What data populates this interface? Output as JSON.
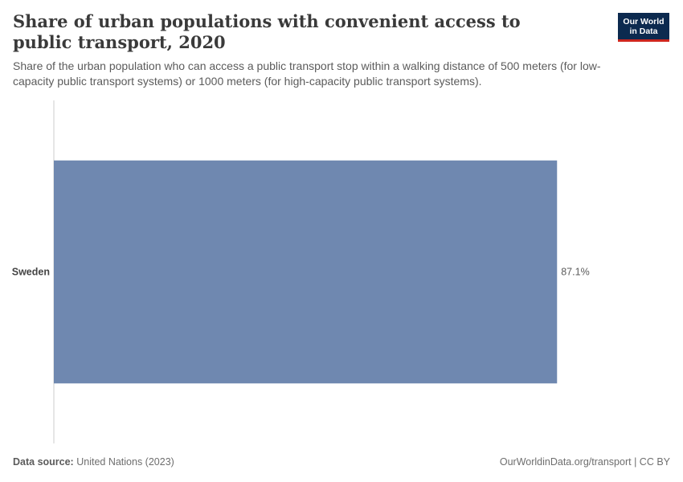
{
  "header": {
    "title": "Share of urban populations with convenient access to public transport, 2020",
    "subtitle": "Share of the urban population who can access a public transport stop within a walking distance of 500 meters (for low-capacity public transport systems) or 1000 meters (for high-capacity public transport systems).",
    "logo_line1": "Our World",
    "logo_line2": "in Data"
  },
  "footer": {
    "source_label": "Data source:",
    "source_value": "United Nations (2023)",
    "link": "OurWorldinData.org/transport",
    "license": "| CC BY"
  },
  "chart_data": {
    "type": "bar",
    "orientation": "horizontal",
    "categories": [
      "Sweden"
    ],
    "values": [
      87.1
    ],
    "value_labels": [
      "87.1%"
    ],
    "unit": "%",
    "xlim": [
      0,
      100
    ],
    "bar_color": "#6f88b0",
    "axis_color": "#cccccc",
    "grid": false
  }
}
